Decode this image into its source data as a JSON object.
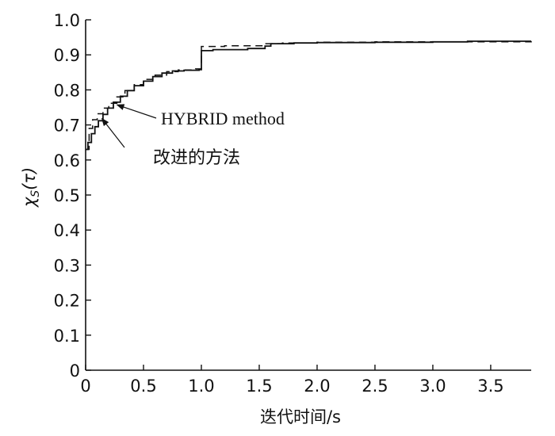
{
  "chart_data": {
    "type": "line",
    "xlabel": "迭代时间/s",
    "ylabel_main": "χ",
    "ylabel_sub": "S",
    "ylabel_arg": "(τ)",
    "xlim": [
      0,
      3.85
    ],
    "ylim": [
      0,
      1.0
    ],
    "x_ticks": [
      "0",
      "0.5",
      "1.0",
      "1.5",
      "2.0",
      "2.5",
      "3.0",
      "3.5"
    ],
    "x_tick_values": [
      0,
      0.5,
      1.0,
      1.5,
      2.0,
      2.5,
      3.0,
      3.5
    ],
    "y_ticks": [
      "0",
      "0.1",
      "0.2",
      "0.3",
      "0.4",
      "0.5",
      "0.6",
      "0.7",
      "0.8",
      "0.9",
      "1.0"
    ],
    "y_tick_values": [
      0,
      0.1,
      0.2,
      0.3,
      0.4,
      0.5,
      0.6,
      0.7,
      0.8,
      0.9,
      1.0
    ],
    "grid": false,
    "series": [
      {
        "style": "solid",
        "points": [
          [
            0.0,
            0.63
          ],
          [
            0.02,
            0.65
          ],
          [
            0.05,
            0.675
          ],
          [
            0.08,
            0.695
          ],
          [
            0.11,
            0.712
          ],
          [
            0.15,
            0.73
          ],
          [
            0.19,
            0.748
          ],
          [
            0.24,
            0.765
          ],
          [
            0.3,
            0.782
          ],
          [
            0.36,
            0.798
          ],
          [
            0.42,
            0.812
          ],
          [
            0.5,
            0.825
          ],
          [
            0.58,
            0.838
          ],
          [
            0.66,
            0.848
          ],
          [
            0.75,
            0.854
          ],
          [
            0.85,
            0.856
          ],
          [
            0.98,
            0.858
          ],
          [
            1.0,
            0.912
          ],
          [
            1.1,
            0.915
          ],
          [
            1.25,
            0.915
          ],
          [
            1.4,
            0.918
          ],
          [
            1.55,
            0.925
          ],
          [
            1.6,
            0.932
          ],
          [
            1.8,
            0.934
          ],
          [
            2.0,
            0.935
          ],
          [
            2.5,
            0.936
          ],
          [
            3.0,
            0.937
          ],
          [
            3.25,
            0.937
          ],
          [
            3.3,
            0.939
          ],
          [
            3.85,
            0.939
          ]
        ]
      },
      {
        "style": "dashed",
        "points": [
          [
            0.0,
            0.63
          ],
          [
            0.03,
            0.69
          ],
          [
            0.06,
            0.715
          ],
          [
            0.1,
            0.732
          ],
          [
            0.15,
            0.748
          ],
          [
            0.2,
            0.762
          ],
          [
            0.27,
            0.78
          ],
          [
            0.34,
            0.798
          ],
          [
            0.42,
            0.815
          ],
          [
            0.5,
            0.83
          ],
          [
            0.6,
            0.842
          ],
          [
            0.7,
            0.852
          ],
          [
            0.8,
            0.857
          ],
          [
            0.95,
            0.86
          ],
          [
            1.0,
            0.924
          ],
          [
            1.2,
            0.926
          ],
          [
            1.4,
            0.926
          ],
          [
            1.55,
            0.932
          ],
          [
            1.7,
            0.934
          ],
          [
            2.0,
            0.936
          ],
          [
            2.5,
            0.937
          ],
          [
            3.25,
            0.937
          ],
          [
            3.85,
            0.939
          ]
        ]
      }
    ],
    "annotations": [
      {
        "text": "HYBRID method",
        "target": [
          0.25,
          0.762
        ]
      },
      {
        "text": "改进的方法",
        "target": [
          0.12,
          0.725
        ]
      }
    ]
  }
}
